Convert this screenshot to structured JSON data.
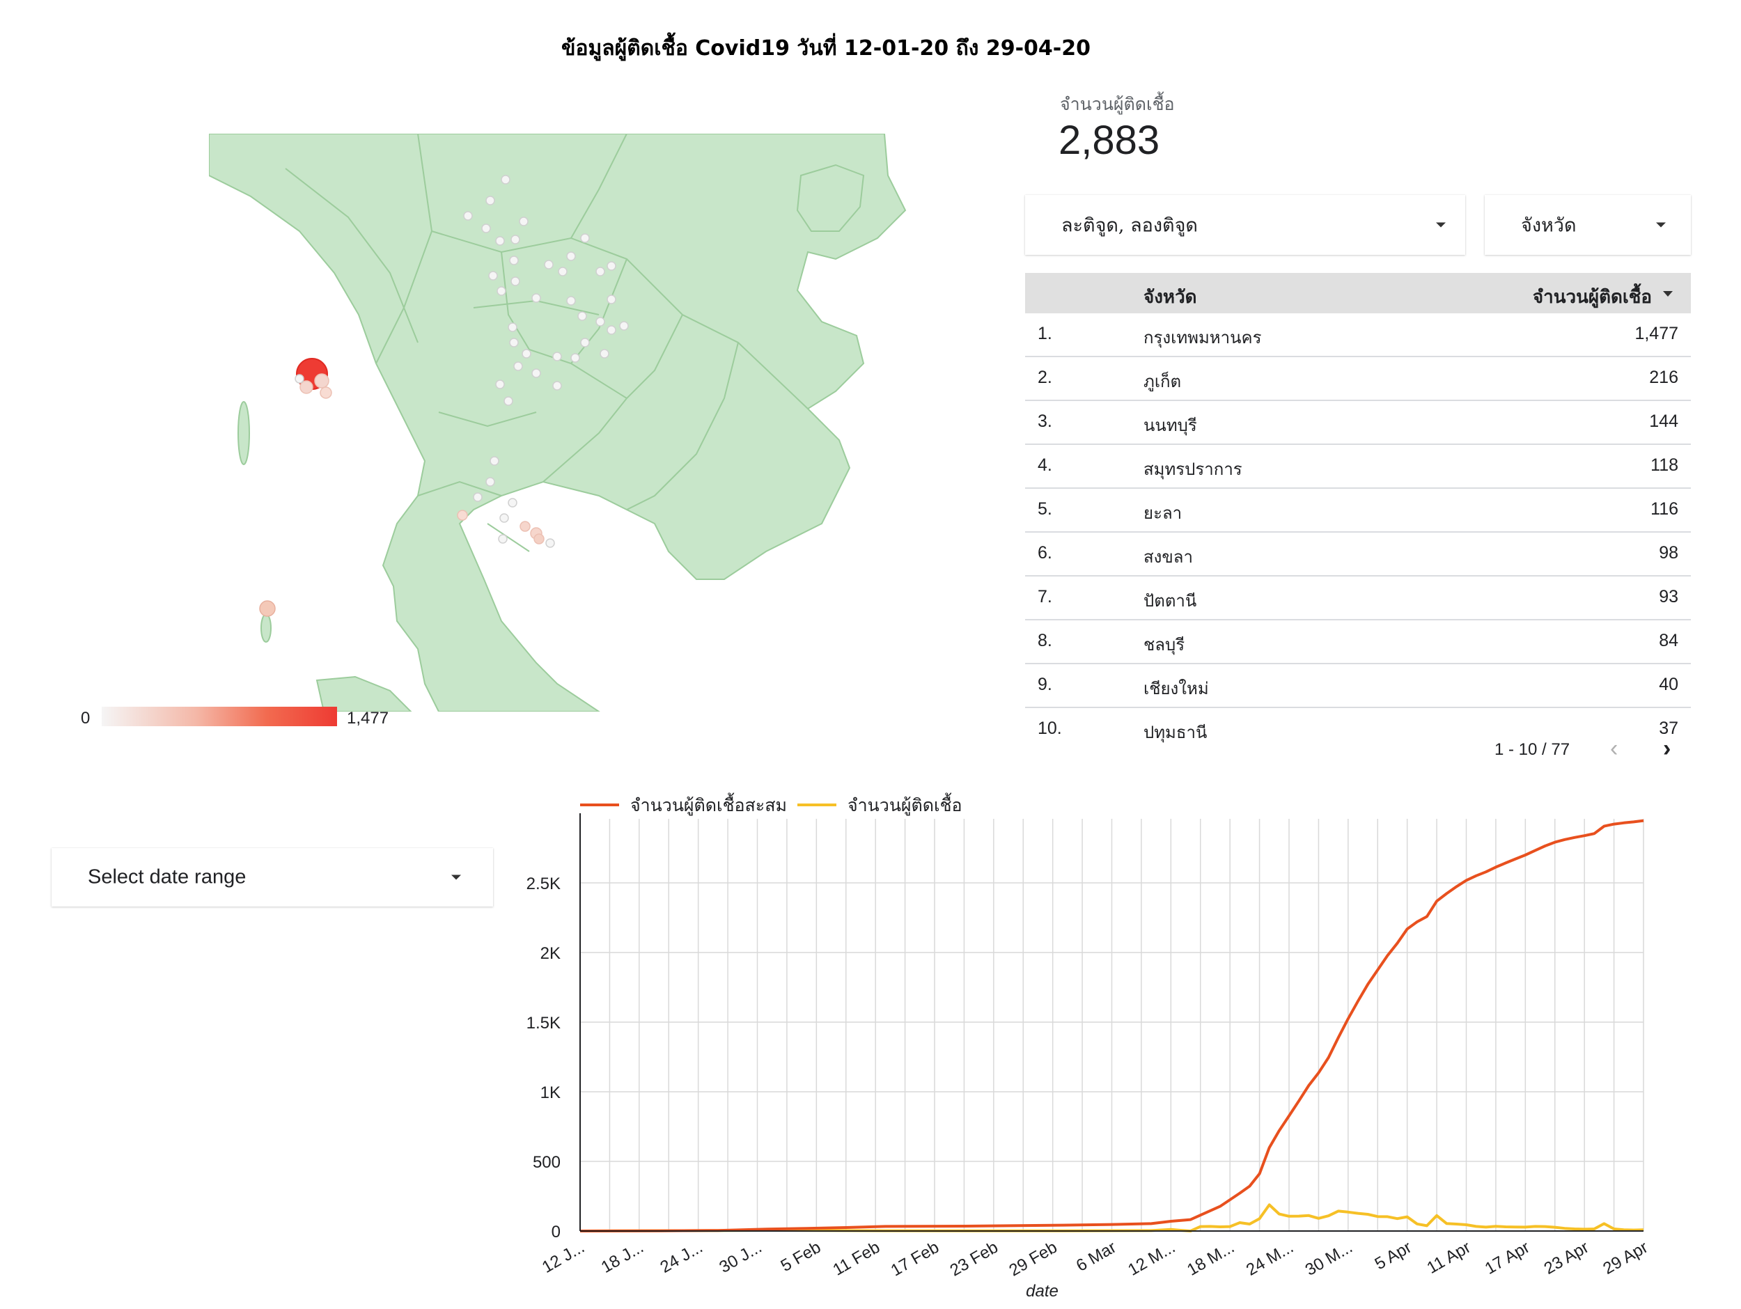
{
  "report": {
    "title": "ข้อมูลผู้ติดเชื้อ Covid19 วันที่ 12-01-20 ถึง 29-04-20"
  },
  "map": {
    "legend_min": "0",
    "legend_max": "1,477",
    "colors": {
      "land": "#c8e6c9",
      "border": "#9ccc9c",
      "bubble_low": "#f3f3f3",
      "bubble_high": "#ee3b33"
    }
  },
  "kpi": {
    "label": "จำนวนผู้ติดเชื้อ",
    "value": "2,883"
  },
  "filters": {
    "latlng_label": "ละติจูด, ลองติจูด",
    "province_label": "จังหวัด",
    "date_range_label": "Select date range"
  },
  "table": {
    "columns": [
      "จังหวัด",
      "จำนวนผู้ติดเชื้อ"
    ],
    "rows": [
      {
        "rank": "1.",
        "province": "กรุงเทพมหานคร",
        "count": "1,477"
      },
      {
        "rank": "2.",
        "province": "ภูเก็ต",
        "count": "216"
      },
      {
        "rank": "3.",
        "province": "นนทบุรี",
        "count": "144"
      },
      {
        "rank": "4.",
        "province": "สมุทรปราการ",
        "count": "118"
      },
      {
        "rank": "5.",
        "province": "ยะลา",
        "count": "116"
      },
      {
        "rank": "6.",
        "province": "สงขลา",
        "count": "98"
      },
      {
        "rank": "7.",
        "province": "ปัตตานี",
        "count": "93"
      },
      {
        "rank": "8.",
        "province": "ชลบุรี",
        "count": "84"
      },
      {
        "rank": "9.",
        "province": "เชียงใหม่",
        "count": "40"
      },
      {
        "rank": "10.",
        "province": "ปทุมธานี",
        "count": "37"
      }
    ],
    "pagination": "1 - 10 / 77"
  },
  "chart_data": {
    "type": "line",
    "title": "",
    "xlabel": "date",
    "ylabel": "",
    "ylim": [
      0,
      2960
    ],
    "yticks": [
      "0",
      "500",
      "1K",
      "1.5K",
      "2K",
      "2.5K"
    ],
    "ytick_values": [
      0,
      500,
      1000,
      1500,
      2000,
      2500
    ],
    "grid": true,
    "legend_position": "top-left",
    "x_start": "2020-01-12",
    "x_end": "2020-04-29",
    "xtick_labels": [
      "12 J...",
      "18 J...",
      "24 J...",
      "30 J...",
      "5 Feb",
      "11 Feb",
      "17 Feb",
      "23 Feb",
      "29 Feb",
      "6 Mar",
      "12 M...",
      "18 M...",
      "24 M...",
      "30 M...",
      "5 Apr",
      "11 Apr",
      "17 Apr",
      "23 Apr",
      "29 Apr"
    ],
    "series": [
      {
        "name": "จำนวนผู้ติดเชื้อสะสม",
        "color": "#e8501e",
        "points": [
          [
            "2020-01-12",
            0
          ],
          [
            "2020-01-20",
            1
          ],
          [
            "2020-01-26",
            4
          ],
          [
            "2020-01-31",
            14
          ],
          [
            "2020-02-04",
            19
          ],
          [
            "2020-02-08",
            25
          ],
          [
            "2020-02-12",
            33
          ],
          [
            "2020-02-20",
            35
          ],
          [
            "2020-03-01",
            42
          ],
          [
            "2020-03-06",
            47
          ],
          [
            "2020-03-10",
            53
          ],
          [
            "2020-03-12",
            70
          ],
          [
            "2020-03-14",
            82
          ],
          [
            "2020-03-15",
            114
          ],
          [
            "2020-03-17",
            177
          ],
          [
            "2020-03-19",
            272
          ],
          [
            "2020-03-20",
            322
          ],
          [
            "2020-03-21",
            411
          ],
          [
            "2020-03-22",
            599
          ],
          [
            "2020-03-23",
            721
          ],
          [
            "2020-03-24",
            827
          ],
          [
            "2020-03-25",
            934
          ],
          [
            "2020-03-26",
            1045
          ],
          [
            "2020-03-27",
            1136
          ],
          [
            "2020-03-28",
            1245
          ],
          [
            "2020-03-29",
            1388
          ],
          [
            "2020-03-30",
            1524
          ],
          [
            "2020-03-31",
            1651
          ],
          [
            "2020-04-01",
            1771
          ],
          [
            "2020-04-02",
            1875
          ],
          [
            "2020-04-03",
            1978
          ],
          [
            "2020-04-04",
            2067
          ],
          [
            "2020-04-05",
            2169
          ],
          [
            "2020-04-06",
            2220
          ],
          [
            "2020-04-07",
            2258
          ],
          [
            "2020-04-08",
            2369
          ],
          [
            "2020-04-09",
            2423
          ],
          [
            "2020-04-10",
            2473
          ],
          [
            "2020-04-11",
            2518
          ],
          [
            "2020-04-12",
            2551
          ],
          [
            "2020-04-13",
            2579
          ],
          [
            "2020-04-14",
            2613
          ],
          [
            "2020-04-15",
            2643
          ],
          [
            "2020-04-16",
            2672
          ],
          [
            "2020-04-17",
            2700
          ],
          [
            "2020-04-18",
            2733
          ],
          [
            "2020-04-19",
            2765
          ],
          [
            "2020-04-20",
            2792
          ],
          [
            "2020-04-21",
            2811
          ],
          [
            "2020-04-22",
            2826
          ],
          [
            "2020-04-23",
            2839
          ],
          [
            "2020-04-24",
            2854
          ],
          [
            "2020-04-25",
            2907
          ],
          [
            "2020-04-26",
            2922
          ],
          [
            "2020-04-27",
            2931
          ],
          [
            "2020-04-28",
            2938
          ],
          [
            "2020-04-29",
            2947
          ]
        ]
      },
      {
        "name": "จำนวนผู้ติดเชื้อ",
        "color": "#f6c026",
        "points": [
          [
            "2020-01-12",
            0
          ],
          [
            "2020-01-31",
            5
          ],
          [
            "2020-02-12",
            2
          ],
          [
            "2020-03-01",
            1
          ],
          [
            "2020-03-10",
            3
          ],
          [
            "2020-03-12",
            11
          ],
          [
            "2020-03-13",
            5
          ],
          [
            "2020-03-14",
            0
          ],
          [
            "2020-03-15",
            32
          ],
          [
            "2020-03-16",
            33
          ],
          [
            "2020-03-17",
            30
          ],
          [
            "2020-03-18",
            32
          ],
          [
            "2020-03-19",
            60
          ],
          [
            "2020-03-20",
            50
          ],
          [
            "2020-03-21",
            89
          ],
          [
            "2020-03-22",
            188
          ],
          [
            "2020-03-23",
            122
          ],
          [
            "2020-03-24",
            106
          ],
          [
            "2020-03-25",
            107
          ],
          [
            "2020-03-26",
            111
          ],
          [
            "2020-03-27",
            91
          ],
          [
            "2020-03-28",
            109
          ],
          [
            "2020-03-29",
            143
          ],
          [
            "2020-03-30",
            136
          ],
          [
            "2020-03-31",
            127
          ],
          [
            "2020-04-01",
            120
          ],
          [
            "2020-04-02",
            104
          ],
          [
            "2020-04-03",
            103
          ],
          [
            "2020-04-04",
            89
          ],
          [
            "2020-04-05",
            102
          ],
          [
            "2020-04-06",
            51
          ],
          [
            "2020-04-07",
            38
          ],
          [
            "2020-04-08",
            111
          ],
          [
            "2020-04-09",
            54
          ],
          [
            "2020-04-10",
            50
          ],
          [
            "2020-04-11",
            45
          ],
          [
            "2020-04-12",
            33
          ],
          [
            "2020-04-13",
            28
          ],
          [
            "2020-04-14",
            34
          ],
          [
            "2020-04-15",
            30
          ],
          [
            "2020-04-16",
            29
          ],
          [
            "2020-04-17",
            28
          ],
          [
            "2020-04-18",
            33
          ],
          [
            "2020-04-19",
            32
          ],
          [
            "2020-04-20",
            27
          ],
          [
            "2020-04-21",
            19
          ],
          [
            "2020-04-22",
            15
          ],
          [
            "2020-04-23",
            13
          ],
          [
            "2020-04-24",
            15
          ],
          [
            "2020-04-25",
            53
          ],
          [
            "2020-04-26",
            15
          ],
          [
            "2020-04-27",
            9
          ],
          [
            "2020-04-28",
            7
          ],
          [
            "2020-04-29",
            9
          ]
        ]
      }
    ]
  }
}
